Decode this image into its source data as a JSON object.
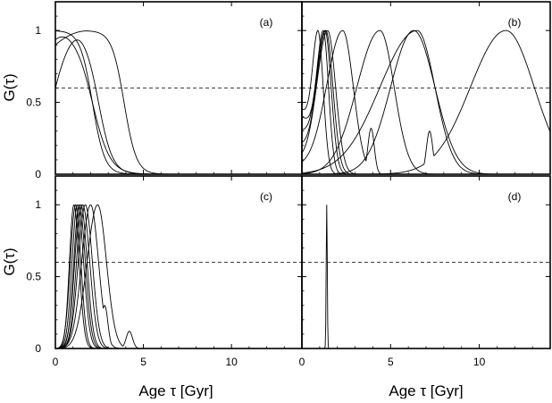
{
  "chart_data": {
    "type": "line",
    "layout": "2x2 grid, shared axes",
    "xlabel": "Age τ [Gyr]",
    "ylabel": "G(τ)",
    "xlim": [
      0,
      14
    ],
    "ylim": [
      0,
      1.2
    ],
    "x_ticks": [
      0,
      5,
      10
    ],
    "y_ticks": [
      0,
      0.5,
      1
    ],
    "x_tick_labels": [
      "0",
      "5",
      "10"
    ],
    "y_tick_labels": [
      "0",
      "0.5",
      "1"
    ],
    "reference_line": {
      "y": 0.6,
      "style": "dashed"
    },
    "grid": false,
    "legend": "none",
    "panels": [
      {
        "label": "(a)",
        "curves": [
          {
            "start_y": 1.0,
            "plateau_end": 0.9,
            "center": 2.1,
            "width": 0.35,
            "tail_y": 0
          },
          {
            "start_y": 0.6,
            "plateau_end": 1.6,
            "center": 2.45,
            "width": 0.4,
            "tail_y": 0
          },
          {
            "start_y": 0.95,
            "plateau_end": 0.8,
            "center": 2.1,
            "width": 0.5,
            "tail_y": 0
          },
          {
            "start_y": 0.9,
            "plateau_end": 1.9,
            "center": 3.9,
            "width": 0.35,
            "tail_y": 0,
            "bumps": [
              [
                4.3,
                0.1
              ]
            ]
          }
        ]
      },
      {
        "label": "(b)",
        "curves": [
          {
            "peak_x": 0.9,
            "sigma_l": 0.3,
            "sigma_r": 0.3,
            "base": 0.45
          },
          {
            "peak_x": 1.2,
            "sigma_l": 0.35,
            "sigma_r": 0.3,
            "base": 0.4
          },
          {
            "peak_x": 1.3,
            "sigma_l": 0.45,
            "sigma_r": 0.35,
            "base": 0.3
          },
          {
            "peak_x": 1.35,
            "sigma_l": 0.5,
            "sigma_r": 0.4,
            "base": 0.2
          },
          {
            "peak_x": 1.45,
            "sigma_l": 0.6,
            "sigma_r": 0.45,
            "base": 0.1
          },
          {
            "peak_x": 2.3,
            "sigma_l": 0.9,
            "sigma_r": 0.6,
            "base": 0.05,
            "bumps": [
              [
                3.9,
                0.32
              ]
            ]
          },
          {
            "peak_x": 4.4,
            "sigma_l": 1.3,
            "sigma_r": 0.8,
            "base": 0.0,
            "bumps": [
              [
                3.8,
                0.87
              ],
              [
                4.2,
                0.15
              ]
            ]
          },
          {
            "peak_x": 6.3,
            "sigma_l": 1.3,
            "sigma_r": 1.2,
            "base": 0.0
          },
          {
            "peak_x": 6.5,
            "sigma_l": 2.1,
            "sigma_r": 1.0,
            "base": 0.0
          },
          {
            "peak_x": 11.5,
            "sigma_l": 2.0,
            "sigma_r": 1.6,
            "base": 0.0,
            "bumps": [
              [
                7.2,
                0.3
              ]
            ]
          }
        ]
      },
      {
        "label": "(c)",
        "curves": [
          {
            "peak_x": 1.05,
            "sigma_l": 0.25,
            "sigma_r": 0.3
          },
          {
            "peak_x": 1.15,
            "sigma_l": 0.3,
            "sigma_r": 0.3
          },
          {
            "peak_x": 1.25,
            "sigma_l": 0.3,
            "sigma_r": 0.35
          },
          {
            "peak_x": 1.35,
            "sigma_l": 0.3,
            "sigma_r": 0.35
          },
          {
            "peak_x": 1.45,
            "sigma_l": 0.35,
            "sigma_r": 0.35
          },
          {
            "peak_x": 1.55,
            "sigma_l": 0.35,
            "sigma_r": 0.4
          },
          {
            "peak_x": 1.7,
            "sigma_l": 0.4,
            "sigma_r": 0.4
          },
          {
            "peak_x": 2.0,
            "sigma_l": 0.5,
            "sigma_r": 0.45,
            "bumps": [
              [
                2.8,
                0.3
              ]
            ]
          },
          {
            "peak_x": 2.4,
            "sigma_l": 0.6,
            "sigma_r": 0.5,
            "bumps": [
              [
                4.2,
                0.12
              ]
            ]
          }
        ]
      },
      {
        "label": "(d)",
        "curves": [
          {
            "peak_x": 1.4,
            "sigma_l": 0.03,
            "sigma_r": 0.03
          }
        ]
      }
    ]
  }
}
